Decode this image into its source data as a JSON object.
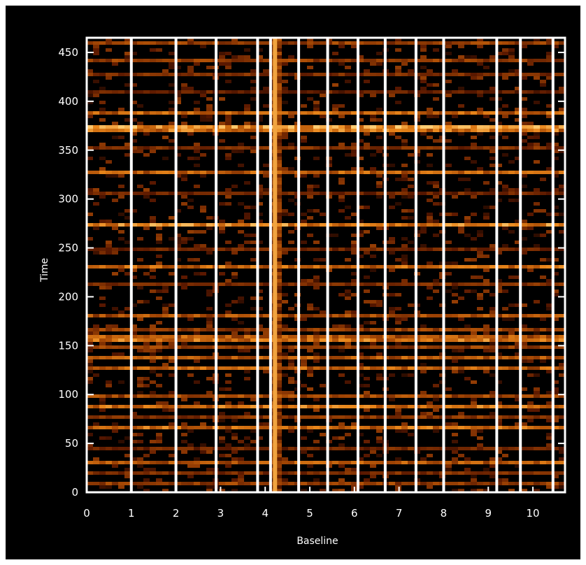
{
  "chart_data": {
    "type": "heatmap",
    "title": "",
    "xlabel": "Baseline",
    "ylabel": "Time",
    "xlim": [
      0,
      10.72
    ],
    "ylim": [
      0,
      465
    ],
    "x_ticks": [
      0,
      1,
      2,
      3,
      4,
      5,
      6,
      7,
      8,
      9,
      10
    ],
    "y_ticks": [
      0,
      50,
      100,
      150,
      200,
      250,
      300,
      350,
      400,
      450
    ],
    "x_tick_labels": [
      "0",
      "1",
      "2",
      "3",
      "4",
      "5",
      "6",
      "7",
      "8",
      "9",
      "10"
    ],
    "y_tick_labels": [
      "0",
      "50",
      "100",
      "150",
      "200",
      "250",
      "300",
      "350",
      "400",
      "450"
    ],
    "separators": [
      1.0,
      2.0,
      2.9,
      3.83,
      4.12,
      4.75,
      5.4,
      6.08,
      6.69,
      7.38,
      8.0,
      9.19,
      9.72,
      10.45
    ],
    "bright_column": {
      "x": 4.22,
      "intensity": 0.85
    },
    "bright_rows": [
      {
        "t": 8,
        "intensity": 0.55
      },
      {
        "t": 19,
        "intensity": 0.45
      },
      {
        "t": 25,
        "intensity": 0.8
      },
      {
        "t": 29,
        "intensity": 0.7
      },
      {
        "t": 46,
        "intensity": 0.4
      },
      {
        "t": 67,
        "intensity": 0.8
      },
      {
        "t": 77,
        "intensity": 0.5
      },
      {
        "t": 89,
        "intensity": 0.85
      },
      {
        "t": 97,
        "intensity": 0.6
      },
      {
        "t": 127,
        "intensity": 0.75
      },
      {
        "t": 138,
        "intensity": 0.7
      },
      {
        "t": 148,
        "intensity": 0.55
      },
      {
        "t": 155,
        "intensity": 0.85
      },
      {
        "t": 159,
        "intensity": 0.7
      },
      {
        "t": 167,
        "intensity": 0.55
      },
      {
        "t": 180,
        "intensity": 0.65
      },
      {
        "t": 212,
        "intensity": 0.45
      },
      {
        "t": 230,
        "intensity": 0.8
      },
      {
        "t": 248,
        "intensity": 0.4
      },
      {
        "t": 274,
        "intensity": 0.95
      },
      {
        "t": 305,
        "intensity": 0.4
      },
      {
        "t": 328,
        "intensity": 0.75
      },
      {
        "t": 353,
        "intensity": 0.45
      },
      {
        "t": 369,
        "intensity": 0.85
      },
      {
        "t": 373,
        "intensity": 1.0
      },
      {
        "t": 387,
        "intensity": 0.75
      },
      {
        "t": 410,
        "intensity": 0.35
      },
      {
        "t": 427,
        "intensity": 0.45
      },
      {
        "t": 441,
        "intensity": 0.55
      },
      {
        "t": 460,
        "intensity": 0.55
      }
    ],
    "colormap": [
      "#000000",
      "#5a1800",
      "#a84a05",
      "#e8851a",
      "#ffd27a"
    ],
    "colors": {
      "background": "#000000",
      "frame": "#ffffff",
      "text": "#ffffff"
    },
    "grid": false
  }
}
